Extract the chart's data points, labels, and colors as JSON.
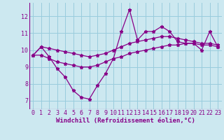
{
  "xlabel": "Windchill (Refroidissement éolien,°C)",
  "background_color": "#cce8f0",
  "plot_bg_color": "#cce8f0",
  "line_color": "#880088",
  "grid_color": "#99ccdd",
  "x_values": [
    0,
    1,
    2,
    3,
    4,
    5,
    6,
    7,
    8,
    9,
    10,
    11,
    12,
    13,
    14,
    15,
    16,
    17,
    18,
    19,
    20,
    21,
    22,
    23
  ],
  "y_main": [
    9.7,
    10.2,
    9.6,
    8.9,
    8.4,
    7.6,
    7.2,
    7.1,
    7.9,
    8.6,
    9.5,
    11.1,
    12.4,
    10.6,
    11.1,
    11.1,
    11.4,
    11.1,
    10.5,
    10.4,
    10.4,
    10.0,
    11.1,
    10.2
  ],
  "y_min": [
    9.7,
    9.7,
    9.5,
    9.3,
    9.2,
    9.1,
    9.0,
    9.0,
    9.1,
    9.3,
    9.5,
    9.6,
    9.8,
    9.9,
    10.0,
    10.1,
    10.2,
    10.3,
    10.3,
    10.4,
    10.4,
    10.3,
    10.3,
    10.2
  ],
  "y_max": [
    9.7,
    10.2,
    10.1,
    10.0,
    9.9,
    9.8,
    9.7,
    9.6,
    9.7,
    9.8,
    10.0,
    10.2,
    10.4,
    10.5,
    10.6,
    10.7,
    10.8,
    10.8,
    10.7,
    10.6,
    10.5,
    10.4,
    10.4,
    10.3
  ],
  "ylim": [
    6.5,
    12.8
  ],
  "yticks": [
    7,
    8,
    9,
    10,
    11,
    12
  ],
  "xticks": [
    0,
    1,
    2,
    3,
    4,
    5,
    6,
    7,
    8,
    9,
    10,
    11,
    12,
    13,
    14,
    15,
    16,
    17,
    18,
    19,
    20,
    21,
    22,
    23
  ],
  "marker": "*",
  "markersize": 3.5,
  "linewidth": 0.9,
  "tick_fontsize": 6.0,
  "xlabel_fontsize": 6.5
}
